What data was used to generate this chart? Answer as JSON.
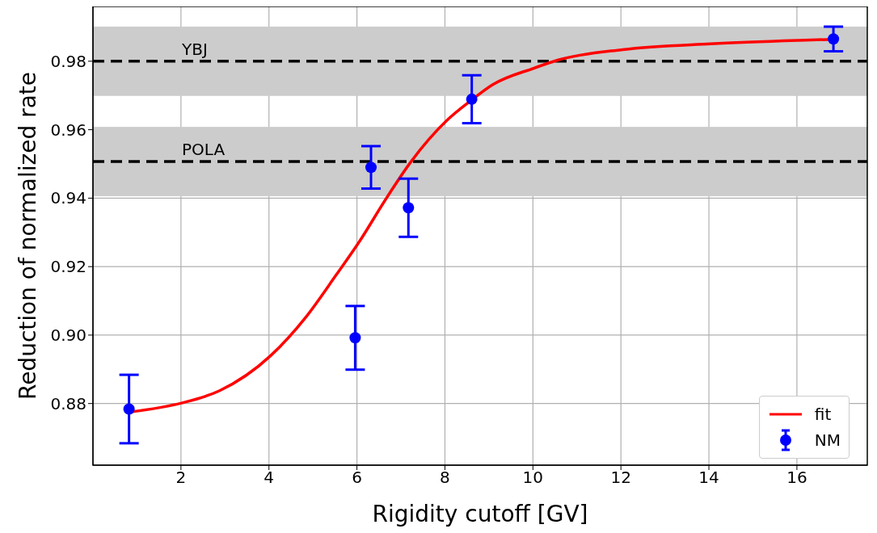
{
  "chart_data": {
    "type": "scatter",
    "xlabel": "Rigidity cutoff [GV]",
    "ylabel": "Reduction of normalized rate",
    "xlim": [
      0,
      17.6
    ],
    "ylim": [
      0.862,
      0.996
    ],
    "xticks": [
      2,
      4,
      6,
      8,
      10,
      12,
      14,
      16
    ],
    "yticks": [
      0.88,
      {
        "value": 0.9,
        "label": "0.90"
      },
      0.92,
      0.94,
      0.96,
      0.98
    ],
    "grid": true,
    "legend": "bottom right",
    "series": [
      {
        "type": "line",
        "name": "fit",
        "color": "#ff0000",
        "marker": "none",
        "line_style": "solid",
        "x": [
          0.82,
          2.03,
          2.87,
          4.04,
          4.83,
          5.53,
          6.06,
          6.66,
          7.22,
          8.06,
          8.61,
          9.08,
          10.03,
          10.56,
          12.04,
          14.04,
          16.04,
          16.83
        ],
        "values": [
          0.8775,
          0.8802,
          0.8837,
          0.894,
          0.9051,
          0.9176,
          0.9274,
          0.9398,
          0.9505,
          0.9629,
          0.9687,
          0.9731,
          0.978,
          0.9803,
          0.9834,
          0.9851,
          0.9861,
          0.9864
        ]
      },
      {
        "type": "scatter",
        "name": "NM",
        "color": "#0000ff",
        "marker": "circle",
        "x": [
          0.82,
          5.96,
          6.32,
          7.17,
          8.61,
          16.83
        ],
        "values": [
          0.8784,
          0.8992,
          0.949,
          0.9372,
          0.9689,
          0.9865
        ],
        "errors": [
          0.01,
          0.0093,
          0.0062,
          0.0085,
          0.007,
          0.0036
        ]
      }
    ],
    "ref_lines": [
      {
        "axis": "y",
        "value": 0.98,
        "label": "YBJ",
        "color": "#000000",
        "line_style": "dashed"
      },
      {
        "axis": "y",
        "value": 0.9507,
        "label": "POLA",
        "color": "#000000",
        "line_style": "dashed"
      }
    ],
    "bands": [
      {
        "axis": "y",
        "from": 0.97,
        "to": 0.99,
        "color": "#cccccc"
      },
      {
        "axis": "y",
        "from": 0.9407,
        "to": 0.9607,
        "color": "#cccccc"
      }
    ]
  }
}
